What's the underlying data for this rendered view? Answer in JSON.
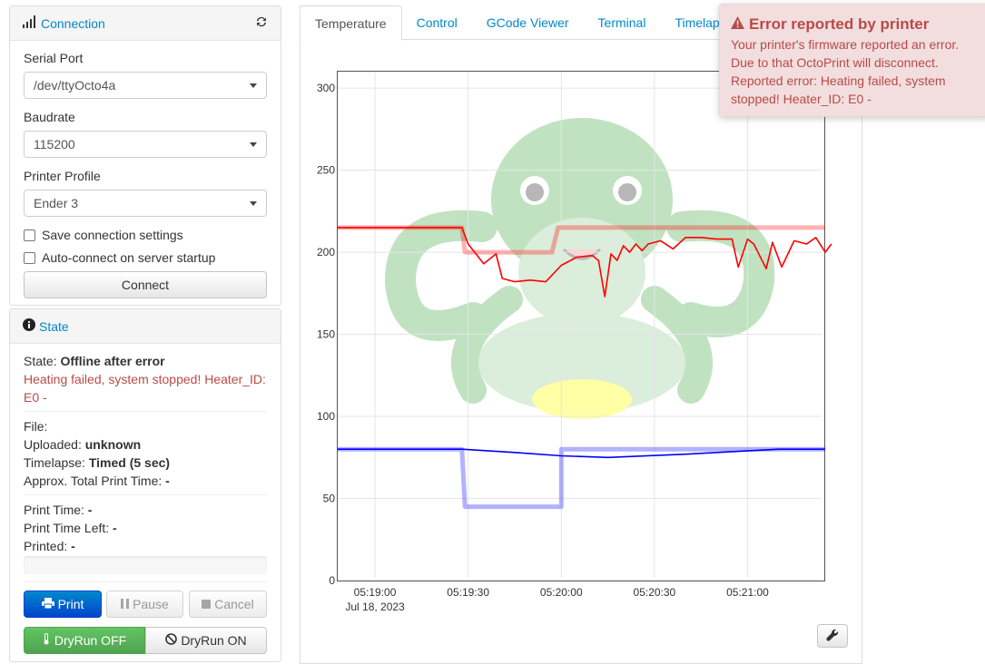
{
  "connection": {
    "title": "Connection",
    "serial_port_label": "Serial Port",
    "serial_port_value": "/dev/ttyOcto4a",
    "baudrate_label": "Baudrate",
    "baudrate_value": "115200",
    "profile_label": "Printer Profile",
    "profile_value": "Ender 3",
    "save_settings_label": "Save connection settings",
    "autoconnect_label": "Auto-connect on server startup",
    "connect_label": "Connect"
  },
  "state": {
    "title": "State",
    "state_label": "State:",
    "state_value": "Offline after error",
    "error_text": "Heating failed, system stopped! Heater_ID: E0 -",
    "file_label": "File:",
    "uploaded_label": "Uploaded:",
    "uploaded_value": "unknown",
    "timelapse_label": "Timelapse:",
    "timelapse_value": "Timed (5 sec)",
    "approx_label": "Approx. Total Print Time:",
    "approx_value": "-",
    "print_time_label": "Print Time:",
    "print_time_value": "-",
    "time_left_label": "Print Time Left:",
    "time_left_value": "-",
    "printed_label": "Printed:",
    "printed_value": "-",
    "print_button": "Print",
    "pause_button": "Pause",
    "cancel_button": "Cancel",
    "dryrun_off": "DryRun OFF",
    "dryrun_on": "DryRun ON"
  },
  "tabs": [
    "Temperature",
    "Control",
    "GCode Viewer",
    "Terminal",
    "Timelapse"
  ],
  "alert": {
    "title": "Error reported by printer",
    "text": "Your printer's firmware reported an error. Due to that OctoPrint will disconnect. Reported error: Heating failed, system stopped! Heater_ID: E0 -"
  },
  "colors": {
    "accent": "#0088cc",
    "error": "#b94a48",
    "tool": "#ff0000",
    "bed": "#0000ff"
  },
  "chart_data": {
    "type": "line",
    "x_ticks": [
      "05:19:00",
      "05:19:30",
      "05:20:00",
      "05:20:30",
      "05:21:00"
    ],
    "x_sub_label": "Jul 18, 2023",
    "y_ticks": [
      0,
      50,
      100,
      150,
      200,
      250,
      300
    ],
    "ylim": [
      0,
      310
    ],
    "x_range_seconds": [
      -12,
      145
    ],
    "series": [
      {
        "color": "#ff0000",
        "kind": "target",
        "points": [
          [
            -12,
            215
          ],
          [
            28,
            215
          ],
          [
            29,
            200
          ],
          [
            57,
            200
          ],
          [
            59,
            215
          ],
          [
            145,
            215
          ]
        ]
      },
      {
        "color": "#ff0000",
        "kind": "actual",
        "points": [
          [
            -12,
            215
          ],
          [
            28,
            215
          ],
          [
            30,
            205
          ],
          [
            35,
            193
          ],
          [
            39,
            199
          ],
          [
            41,
            184
          ],
          [
            45,
            182
          ],
          [
            50,
            183
          ],
          [
            55,
            182
          ],
          [
            60,
            192
          ],
          [
            65,
            197
          ],
          [
            70,
            198
          ],
          [
            72,
            195
          ],
          [
            74,
            173
          ],
          [
            76,
            199
          ],
          [
            78,
            195
          ],
          [
            80,
            204
          ],
          [
            82,
            200
          ],
          [
            84,
            205
          ],
          [
            86,
            201
          ],
          [
            88,
            205
          ],
          [
            92,
            207
          ],
          [
            96,
            202
          ],
          [
            100,
            209
          ],
          [
            105,
            209
          ],
          [
            110,
            208
          ],
          [
            115,
            208
          ],
          [
            117,
            191
          ],
          [
            120,
            208
          ],
          [
            122,
            205
          ],
          [
            126,
            190
          ],
          [
            128,
            206
          ],
          [
            131,
            191
          ],
          [
            135,
            207
          ],
          [
            139,
            205
          ],
          [
            142,
            209
          ],
          [
            145,
            200
          ],
          [
            147,
            205
          ]
        ]
      },
      {
        "color": "#0000ff",
        "kind": "target",
        "points": [
          [
            -12,
            80
          ],
          [
            28,
            80
          ],
          [
            29,
            45
          ],
          [
            60,
            45
          ],
          [
            60,
            80
          ],
          [
            145,
            80
          ]
        ]
      },
      {
        "color": "#0000ff",
        "kind": "actual",
        "points": [
          [
            -12,
            80
          ],
          [
            28,
            80
          ],
          [
            45,
            78
          ],
          [
            60,
            76
          ],
          [
            75,
            75
          ],
          [
            100,
            77
          ],
          [
            130,
            80
          ],
          [
            145,
            80
          ]
        ]
      }
    ]
  }
}
